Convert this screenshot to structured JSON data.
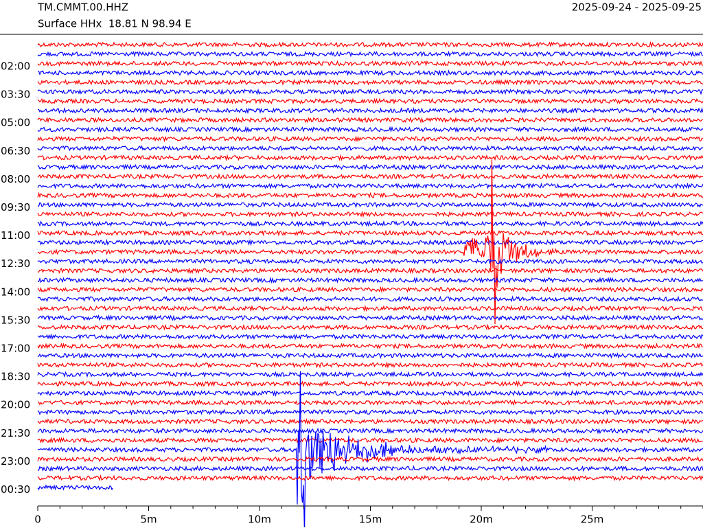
{
  "chart_data": {
    "type": "helicorder",
    "title": "TM.CMMT.00.HHZ",
    "subtitle": "Surface HHx  18.81 N 98.94 E",
    "date_range": "2025-09-24 - 2025-09-25",
    "row_labels": [
      "02:00",
      "03:30",
      "05:00",
      "06:30",
      "08:00",
      "09:30",
      "11:00",
      "12:30",
      "14:00",
      "15:30",
      "17:00",
      "18:30",
      "20:00",
      "21:30",
      "23:00",
      "00:30"
    ],
    "xlim": [
      0,
      30
    ],
    "xticks": [
      0,
      {
        "value": 5,
        "label": "5m"
      },
      {
        "value": 10,
        "label": "10m"
      },
      {
        "value": 15,
        "label": "15m"
      },
      {
        "value": 20,
        "label": "20m"
      },
      {
        "value": 25,
        "label": "25m"
      }
    ],
    "colors": [
      "#ff0000",
      "#0000ff"
    ]
  }
}
